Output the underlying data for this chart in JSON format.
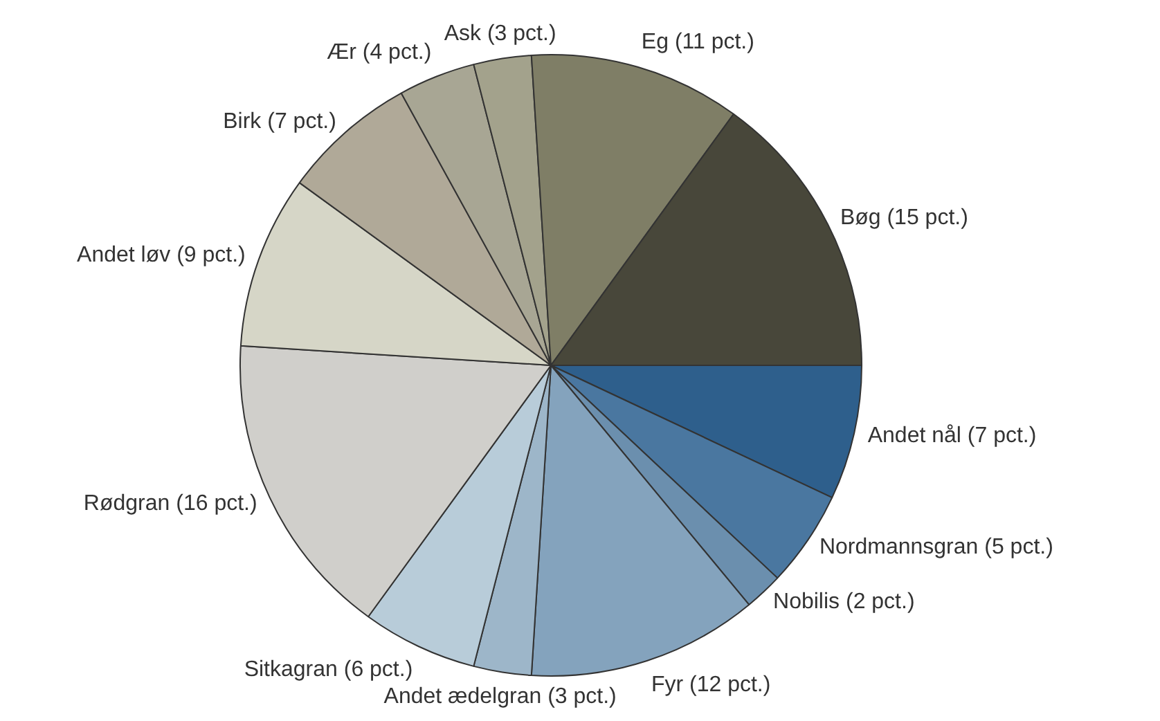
{
  "chart_data": {
    "type": "pie",
    "categories": [
      "Andet nål (7 pct.)",
      "Nordmannsgran (5 pct.)",
      "Nobilis (2 pct.)",
      "Fyr (12 pct.)",
      "Andet ædelgran (3 pct.)",
      "Sitkagran (6 pct.)",
      "Rødgran (16 pct.)",
      "Andet løv (9 pct.)",
      "Birk (7 pct.)",
      "Ær (4 pct.)",
      "Ask (3 pct.)",
      "Eg (11 pct.)",
      "Bøg (15 pct.)"
    ],
    "values": [
      7,
      5,
      2,
      12,
      3,
      6,
      16,
      9,
      7,
      4,
      3,
      11,
      15
    ],
    "colors": [
      "#2e5f8c",
      "#4a77a0",
      "#6b8fae",
      "#84a3bd",
      "#9db6c9",
      "#b8ccd9",
      "#d0cfcb",
      "#d6d6c7",
      "#b0a998",
      "#a8a694",
      "#a3a28c",
      "#7f7e66",
      "#48473a"
    ],
    "legend": false
  }
}
